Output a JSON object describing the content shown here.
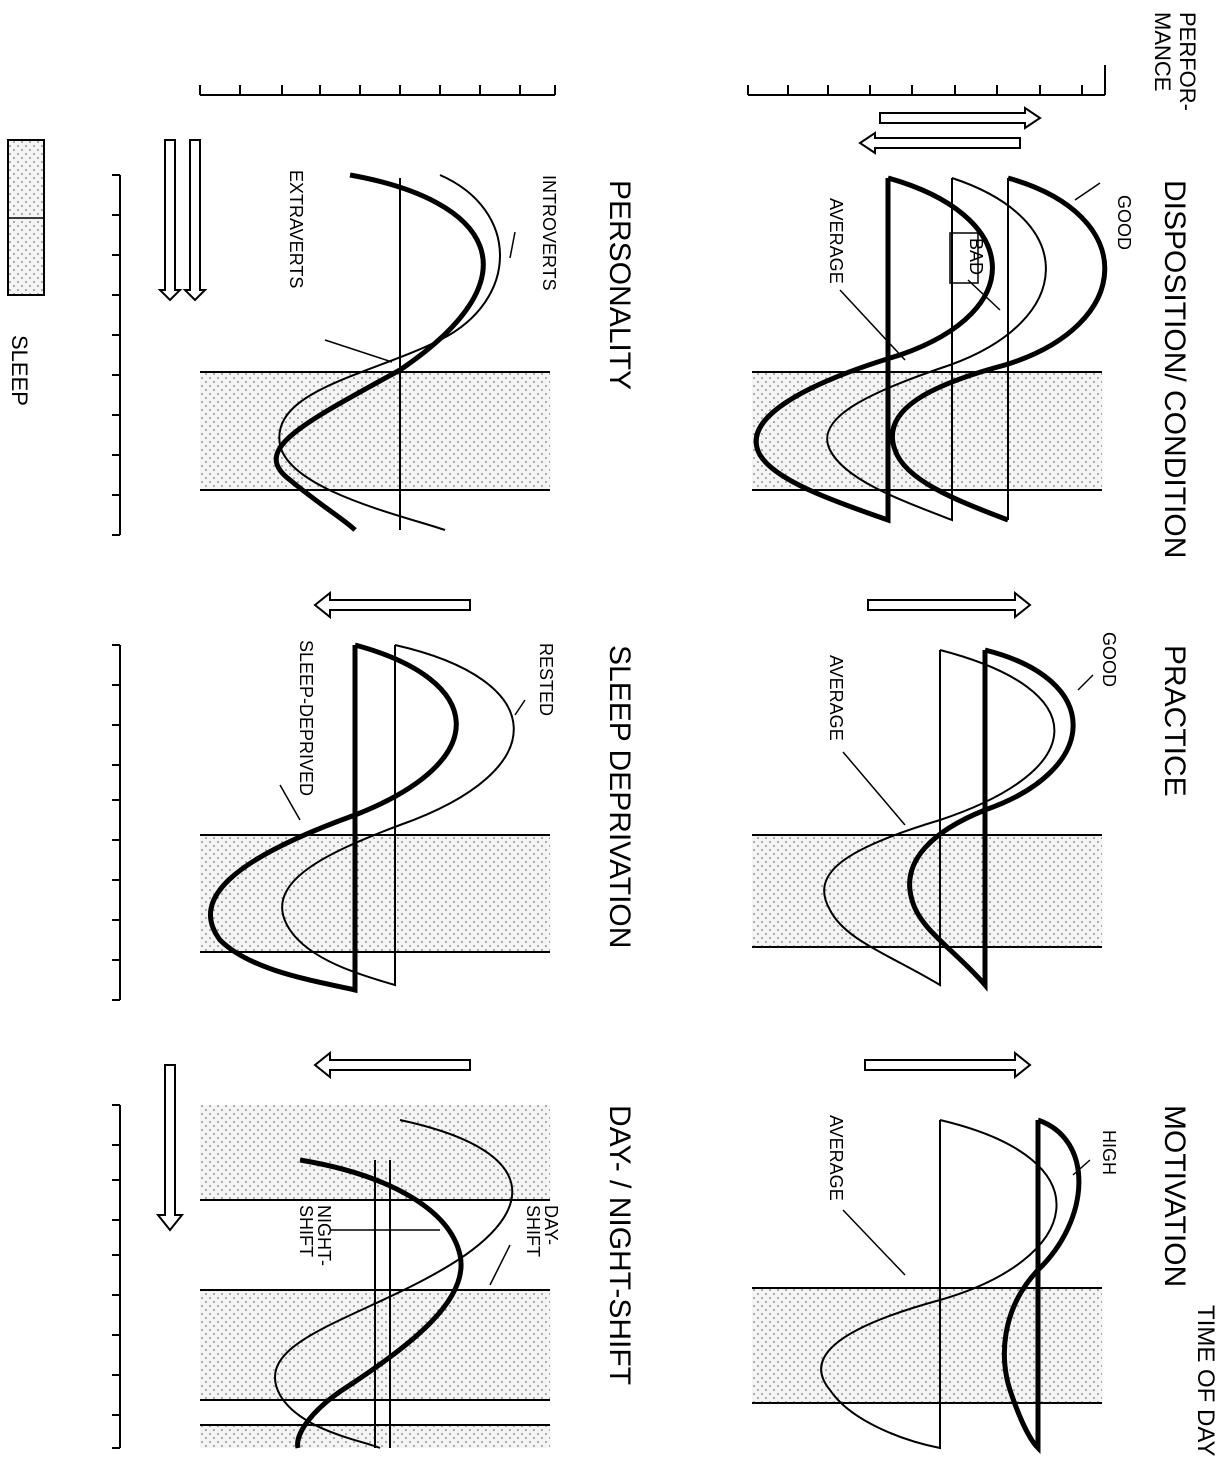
{
  "axis": {
    "performance_label_line1": "PERFOR-",
    "performance_label_line2": "MANCE",
    "time_label": "TIME OF DAY"
  },
  "legend": {
    "sleep_label": "SLEEP"
  },
  "panels": [
    {
      "id": "disposition",
      "title": "DISPOSITION/ CONDITION",
      "curves": [
        {
          "label": "GOOD",
          "weight": "bold",
          "peak": 0.82,
          "trough": 0.18,
          "mean": 0.5
        },
        {
          "label": "AVERAGE",
          "weight": "thin",
          "peak": 0.65,
          "trough": 0.22,
          "mean": 0.45
        },
        {
          "label": "BAD",
          "weight": "bold",
          "peak": 0.46,
          "trough": 0.05,
          "mean": 0.26
        }
      ],
      "arrow": "both"
    },
    {
      "id": "practice",
      "title": "PRACTICE",
      "curves": [
        {
          "label": "GOOD",
          "weight": "bold",
          "amplitude": "reduced"
        },
        {
          "label": "AVERAGE",
          "weight": "thin",
          "amplitude": "normal"
        }
      ],
      "arrow": "up"
    },
    {
      "id": "motivation",
      "title": "MOTIVATION",
      "curves": [
        {
          "label": "HIGH",
          "weight": "bold",
          "amplitude": "flat"
        },
        {
          "label": "AVERAGE",
          "weight": "thin",
          "amplitude": "normal"
        }
      ],
      "arrow": "up"
    },
    {
      "id": "personality",
      "title": "PERSONALITY",
      "curves": [
        {
          "label": "INTROVERTS",
          "weight": "bold",
          "phase": "early"
        },
        {
          "label": "EXTRAVERTS",
          "weight": "thin",
          "phase": "late"
        }
      ],
      "arrow": "both"
    },
    {
      "id": "sleep-deprivation",
      "title": "SLEEP DEPRIVATION",
      "curves": [
        {
          "label": "RESTED",
          "weight": "thin",
          "level": "normal"
        },
        {
          "label": "SLEEP-DEPRIVED",
          "weight": "bold",
          "level": "lowered"
        }
      ],
      "arrow": "down"
    },
    {
      "id": "day-night-shift",
      "title": "DAY- / NIGHT-SHIFT",
      "curves": [
        {
          "label": "DAY-SHIFT",
          "weight": "thin",
          "phase": "normal"
        },
        {
          "label": "NIGHT-SHIFT",
          "weight": "bold",
          "phase": "shifted"
        }
      ],
      "arrow": "down"
    }
  ]
}
